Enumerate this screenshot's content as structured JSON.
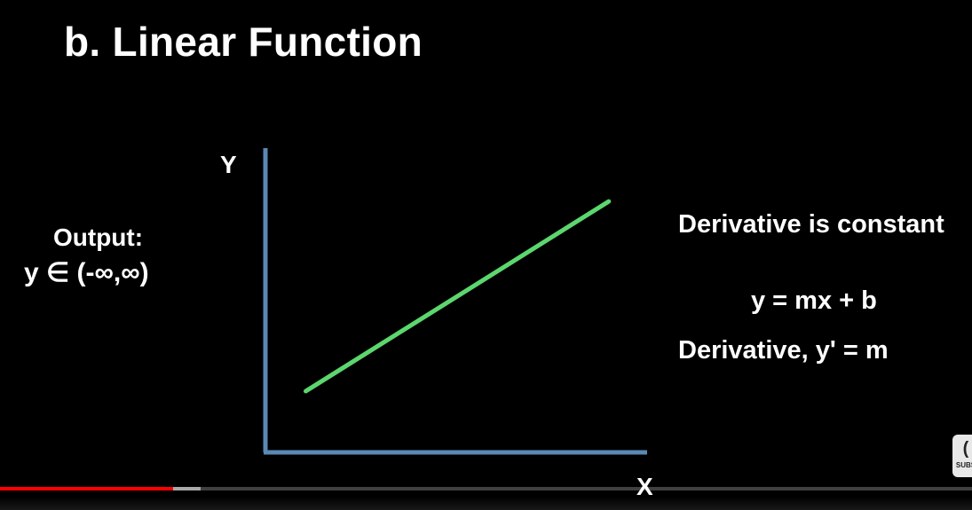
{
  "slide": {
    "title": "b. Linear Function",
    "output_label": "Output:",
    "output_range": "y  ∈ (-∞,∞)",
    "right_text": {
      "derivative_constant": "Derivative is constant",
      "equation": "y = mx + b",
      "derivative_equation": "Derivative, y' = m"
    }
  },
  "chart_data": {
    "type": "line",
    "title": "",
    "xlabel": "X",
    "ylabel": "Y",
    "series": [
      {
        "x": [
          0.1,
          0.85
        ],
        "y": [
          0.2,
          0.82
        ]
      }
    ],
    "xlim": [
      0,
      1
    ],
    "ylim": [
      0,
      1
    ],
    "grid": false,
    "colors": {
      "axes": "#5b88b5",
      "line": "#5cd66e"
    }
  },
  "player": {
    "progress_fraction": 0.178,
    "buffer_fraction": 0.206,
    "cc_badge_label": "SUBS",
    "cc_icon": "captions-icon",
    "colors": {
      "played": "#ff0000"
    }
  }
}
